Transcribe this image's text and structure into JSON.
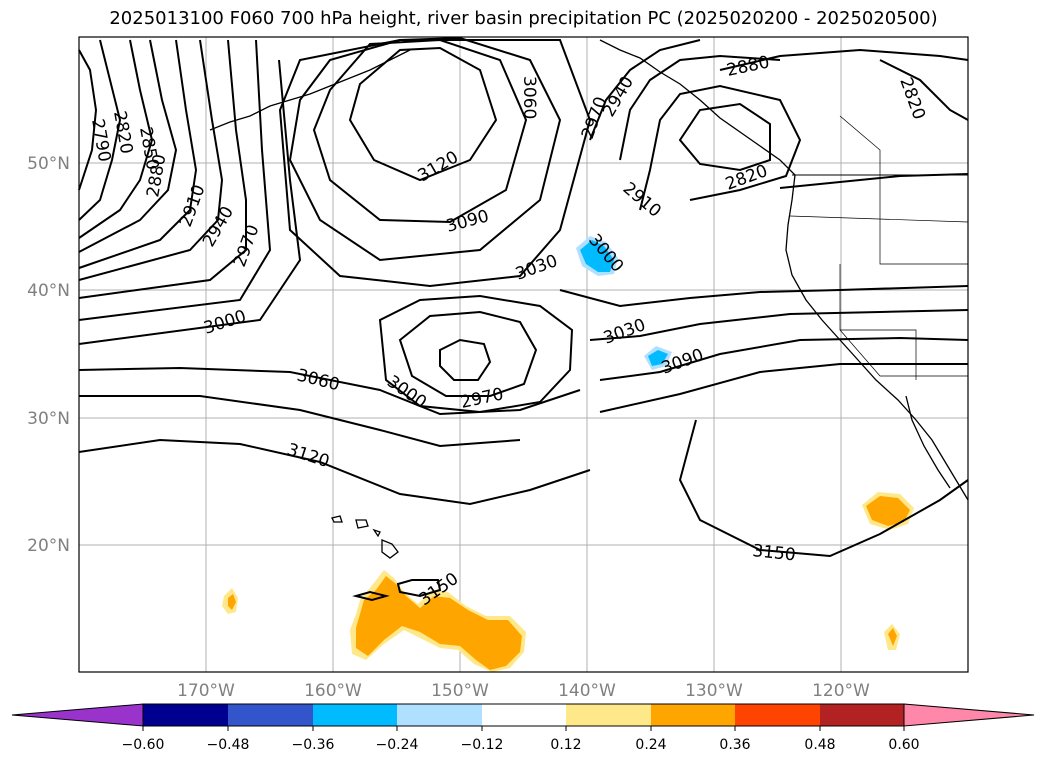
{
  "title": "2025013100 F060 700 hPa height, river basin precipitation PC (2025020200 - 2025020500)",
  "map": {
    "lon_labels": [
      "170°W",
      "160°W",
      "150°W",
      "140°W",
      "130°W",
      "120°W"
    ],
    "lat_labels": [
      "50°N",
      "40°N",
      "30°N",
      "20°N"
    ],
    "contour_labels": [
      "2790",
      "2820",
      "2850",
      "2880",
      "2910",
      "2940",
      "2970",
      "3000",
      "3060",
      "3120",
      "3090",
      "3030",
      "3060",
      "2970",
      "2940",
      "2880",
      "2820",
      "2910",
      "2820",
      "3000",
      "3030",
      "3090",
      "3000",
      "2970",
      "3060",
      "3120",
      "3150",
      "3150"
    ],
    "colors": {
      "contour": "#000000",
      "grid": "#b0b0b0",
      "coast": "#000000"
    }
  },
  "colorbar": {
    "labels": [
      "−0.60",
      "−0.48",
      "−0.36",
      "−0.24",
      "−0.12",
      "0.12",
      "0.24",
      "0.36",
      "0.48",
      "0.60"
    ],
    "colors": [
      "#9933cc",
      "#000090",
      "#3355cc",
      "#00bbff",
      "#b0e0ff",
      "#ffffff",
      "#ffe88a",
      "#ffa500",
      "#ff4400",
      "#b22222",
      "#ff88aa"
    ]
  }
}
